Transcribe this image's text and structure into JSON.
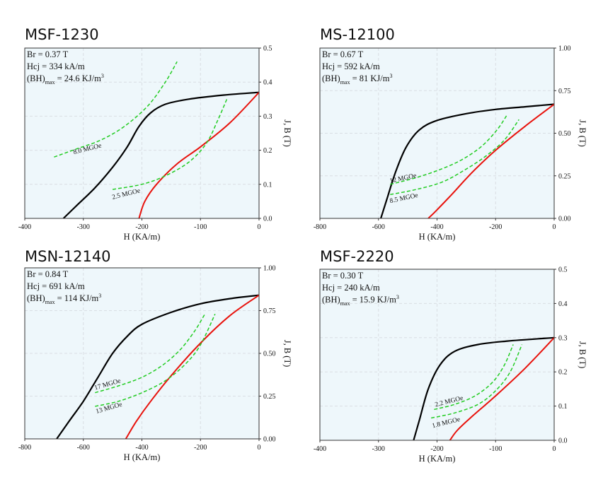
{
  "colors": {
    "plot_background": "#eef7fb",
    "grid": "#d9dee3",
    "demag_curve": "#000000",
    "normal_curve": "#e8120c",
    "energy_curve": "#22cc22",
    "frame": "#333333"
  },
  "chart_data": [
    {
      "type": "line",
      "title": "MSF-1230",
      "info": {
        "br": "Br = 0.37 T",
        "hcj": "Hcj = 334 kA/m",
        "bh_prefix": "(BH)",
        "bh_sub": "max",
        "bh_value": " = 24.6 KJ/m",
        "bh_sup": "3"
      },
      "xlabel": "H (KA/m)",
      "ylabel": "J, B (T)",
      "xlim": [
        -400,
        0
      ],
      "ylim": [
        0,
        0.5
      ],
      "xticks": [
        -400,
        -300,
        -200,
        -100,
        0
      ],
      "xtick_labels": [
        "-400",
        "-300",
        "-200",
        "-100",
        "0"
      ],
      "yticks": [
        0,
        0.1,
        0.2,
        0.3,
        0.4,
        0.5
      ],
      "ytick_labels": [
        "0.0",
        "0.1",
        "0.2",
        "0.3",
        "0.4",
        "0.5"
      ],
      "series": [
        {
          "kind": "demag",
          "points": [
            [
              -334,
              0
            ],
            [
              -310,
              0.04
            ],
            [
              -280,
              0.09
            ],
            [
              -250,
              0.15
            ],
            [
              -225,
              0.21
            ],
            [
              -205,
              0.27
            ],
            [
              -185,
              0.31
            ],
            [
              -160,
              0.335
            ],
            [
              -120,
              0.35
            ],
            [
              -60,
              0.362
            ],
            [
              0,
              0.37
            ]
          ]
        },
        {
          "kind": "normal",
          "points": [
            [
              -205,
              0
            ],
            [
              -195,
              0.05
            ],
            [
              -175,
              0.1
            ],
            [
              -140,
              0.16
            ],
            [
              -100,
              0.21
            ],
            [
              -50,
              0.28
            ],
            [
              0,
              0.37
            ]
          ]
        },
        {
          "label": "8.0 MGOe",
          "kind": "energy",
          "points": [
            [
              -350,
              0.18
            ],
            [
              -310,
              0.205
            ],
            [
              -270,
              0.23
            ],
            [
              -230,
              0.27
            ],
            [
              -190,
              0.33
            ],
            [
              -160,
              0.4
            ],
            [
              -140,
              0.46
            ]
          ]
        },
        {
          "label": "2.5 MGOe",
          "kind": "energy",
          "points": [
            [
              -250,
              0.085
            ],
            [
              -200,
              0.1
            ],
            [
              -160,
              0.125
            ],
            [
              -120,
              0.165
            ],
            [
              -90,
              0.22
            ],
            [
              -70,
              0.29
            ],
            [
              -55,
              0.35
            ]
          ]
        }
      ]
    },
    {
      "type": "line",
      "title": "MS-12100",
      "info": {
        "br": "Br = 0.67 T",
        "hcj": "Hcj = 592 kA/m",
        "bh_prefix": "(BH)",
        "bh_sub": "max",
        "bh_value": " = 81 KJ/m",
        "bh_sup": "3"
      },
      "xlabel": "H (KA/m)",
      "ylabel": "J, B (T)",
      "xlim": [
        -800,
        0
      ],
      "ylim": [
        0,
        1.0
      ],
      "xticks": [
        -800,
        -600,
        -400,
        -200,
        0
      ],
      "xtick_labels": [
        "-800",
        "-600",
        "-400",
        "-200",
        "0"
      ],
      "yticks": [
        0,
        0.25,
        0.5,
        0.75,
        1.0
      ],
      "ytick_labels": [
        "0.00",
        "0.25",
        "0.50",
        "0.75",
        "1.00"
      ],
      "series": [
        {
          "kind": "demag",
          "points": [
            [
              -592,
              0
            ],
            [
              -570,
              0.12
            ],
            [
              -540,
              0.28
            ],
            [
              -505,
              0.42
            ],
            [
              -460,
              0.52
            ],
            [
              -400,
              0.575
            ],
            [
              -300,
              0.615
            ],
            [
              -200,
              0.64
            ],
            [
              -100,
              0.655
            ],
            [
              0,
              0.67
            ]
          ]
        },
        {
          "kind": "normal",
          "points": [
            [
              -430,
              0
            ],
            [
              -400,
              0.05
            ],
            [
              -350,
              0.14
            ],
            [
              -280,
              0.27
            ],
            [
              -200,
              0.4
            ],
            [
              -100,
              0.54
            ],
            [
              0,
              0.67
            ]
          ]
        },
        {
          "label": "12 MGOe",
          "kind": "energy",
          "points": [
            [
              -560,
              0.2
            ],
            [
              -480,
              0.235
            ],
            [
              -400,
              0.28
            ],
            [
              -320,
              0.34
            ],
            [
              -250,
              0.42
            ],
            [
              -195,
              0.52
            ],
            [
              -160,
              0.61
            ]
          ]
        },
        {
          "label": "8.5 MGOe",
          "kind": "energy",
          "points": [
            [
              -560,
              0.14
            ],
            [
              -470,
              0.17
            ],
            [
              -380,
              0.215
            ],
            [
              -300,
              0.29
            ],
            [
              -230,
              0.37
            ],
            [
              -170,
              0.46
            ],
            [
              -120,
              0.58
            ]
          ]
        }
      ]
    },
    {
      "type": "line",
      "title": "MSN-12140",
      "info": {
        "br": "Br = 0.84 T",
        "hcj": "Hcj = 691 kA/m",
        "bh_prefix": "(BH)",
        "bh_sub": "max",
        "bh_value": " = 114 KJ/m",
        "bh_sup": "3"
      },
      "xlabel": "H (KA/m)",
      "ylabel": "J, B (T)",
      "xlim": [
        -800,
        0
      ],
      "ylim": [
        0,
        1.0
      ],
      "xticks": [
        -800,
        -600,
        -400,
        -200,
        0
      ],
      "xtick_labels": [
        "-800",
        "-600",
        "-400",
        "-200",
        "0"
      ],
      "yticks": [
        0,
        0.25,
        0.5,
        0.75,
        1.0
      ],
      "ytick_labels": [
        "0.00",
        "0.25",
        "0.50",
        "0.75",
        "1.00"
      ],
      "series": [
        {
          "kind": "demag",
          "points": [
            [
              -691,
              0
            ],
            [
              -650,
              0.1
            ],
            [
              -600,
              0.22
            ],
            [
              -550,
              0.36
            ],
            [
              -500,
              0.5
            ],
            [
              -450,
              0.6
            ],
            [
              -400,
              0.67
            ],
            [
              -300,
              0.74
            ],
            [
              -200,
              0.79
            ],
            [
              -100,
              0.82
            ],
            [
              0,
              0.84
            ]
          ]
        },
        {
          "kind": "normal",
          "points": [
            [
              -455,
              0
            ],
            [
              -420,
              0.1
            ],
            [
              -370,
              0.22
            ],
            [
              -300,
              0.37
            ],
            [
              -200,
              0.56
            ],
            [
              -100,
              0.72
            ],
            [
              0,
              0.84
            ]
          ]
        },
        {
          "label": "17 MGOe",
          "kind": "energy",
          "points": [
            [
              -560,
              0.27
            ],
            [
              -480,
              0.31
            ],
            [
              -400,
              0.36
            ],
            [
              -330,
              0.43
            ],
            [
              -270,
              0.52
            ],
            [
              -220,
              0.63
            ],
            [
              -185,
              0.73
            ]
          ]
        },
        {
          "label": "13 MGOe",
          "kind": "energy",
          "points": [
            [
              -560,
              0.19
            ],
            [
              -480,
              0.22
            ],
            [
              -400,
              0.27
            ],
            [
              -320,
              0.34
            ],
            [
              -250,
              0.44
            ],
            [
              -200,
              0.55
            ],
            [
              -150,
              0.73
            ]
          ]
        }
      ]
    },
    {
      "type": "line",
      "title": "MSF-2220",
      "info": {
        "br": "Br = 0.30 T",
        "hcj": "Hcj = 240 kA/m",
        "bh_prefix": "(BH)",
        "bh_sub": "max",
        "bh_value": " = 15.9 KJ/m",
        "bh_sup": "3"
      },
      "xlabel": "H (KA/m)",
      "ylabel": "J, B (T)",
      "xlim": [
        -400,
        0
      ],
      "ylim": [
        0,
        0.5
      ],
      "xticks": [
        -400,
        -300,
        -200,
        -100,
        0
      ],
      "xtick_labels": [
        "-400",
        "-300",
        "-200",
        "-100",
        "0"
      ],
      "yticks": [
        0,
        0.1,
        0.2,
        0.3,
        0.4,
        0.5
      ],
      "ytick_labels": [
        "0.0",
        "0.1",
        "0.2",
        "0.3",
        "0.4",
        "0.5"
      ],
      "series": [
        {
          "kind": "demag",
          "points": [
            [
              -240,
              0
            ],
            [
              -230,
              0.06
            ],
            [
              -215,
              0.15
            ],
            [
              -195,
              0.22
            ],
            [
              -170,
              0.26
            ],
            [
              -130,
              0.28
            ],
            [
              -80,
              0.29
            ],
            [
              0,
              0.3
            ]
          ]
        },
        {
          "kind": "normal",
          "points": [
            [
              -178,
              0
            ],
            [
              -165,
              0.03
            ],
            [
              -140,
              0.07
            ],
            [
              -100,
              0.13
            ],
            [
              -50,
              0.21
            ],
            [
              0,
              0.3
            ]
          ]
        },
        {
          "label": "2.2 MGOe",
          "kind": "energy",
          "points": [
            [
              -205,
              0.09
            ],
            [
              -170,
              0.105
            ],
            [
              -135,
              0.13
            ],
            [
              -105,
              0.17
            ],
            [
              -85,
              0.22
            ],
            [
              -70,
              0.28
            ]
          ]
        },
        {
          "label": "1.8 MGOe",
          "kind": "energy",
          "points": [
            [
              -210,
              0.065
            ],
            [
              -170,
              0.08
            ],
            [
              -130,
              0.105
            ],
            [
              -100,
              0.145
            ],
            [
              -75,
              0.2
            ],
            [
              -55,
              0.28
            ]
          ]
        }
      ]
    }
  ]
}
